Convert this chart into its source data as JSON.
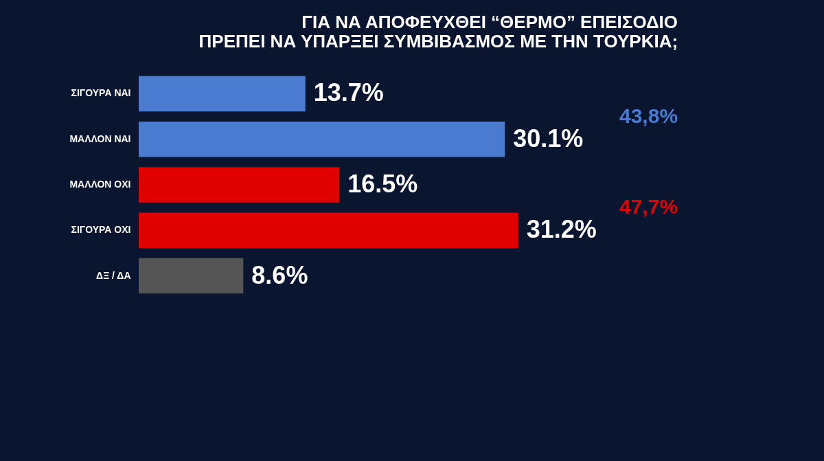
{
  "chart_data": {
    "type": "bar",
    "orientation": "horizontal",
    "title": [
      "ΓΙΑ ΝΑ ΑΠΟΦΕΥΧΘΕΙ “ΘΕΡΜΟ” ΕΠΕΙΣΟΔΙΟ",
      "ΠΡΕΠΕΙ ΝΑ ΥΠΑΡΞΕΙ ΣΥΜΒΙΒΑΣΜΟΣ ΜΕ ΤΗΝ ΤΟΥΡΚΙΑ;"
    ],
    "categories": [
      "ΣΙΓΟΥΡΑ ΝΑΙ",
      "ΜΑΛΛΟΝ ΝΑΙ",
      "ΜΑΛΛΟΝ ΟΧΙ",
      "ΣΙΓΟΥΡΑ ΟΧΙ",
      "ΔΞ / ΔΑ"
    ],
    "values": [
      13.7,
      30.1,
      16.5,
      31.2,
      8.6
    ],
    "colors": [
      "#4a7bd0",
      "#4a7bd0",
      "#e00000",
      "#e00000",
      "#555555"
    ],
    "value_labels": [
      "13.7%",
      "30.1%",
      "16.5%",
      "31.2%",
      "8.6%"
    ],
    "annotations": [
      "43,8%",
      "47,7%"
    ],
    "grid": false
  }
}
